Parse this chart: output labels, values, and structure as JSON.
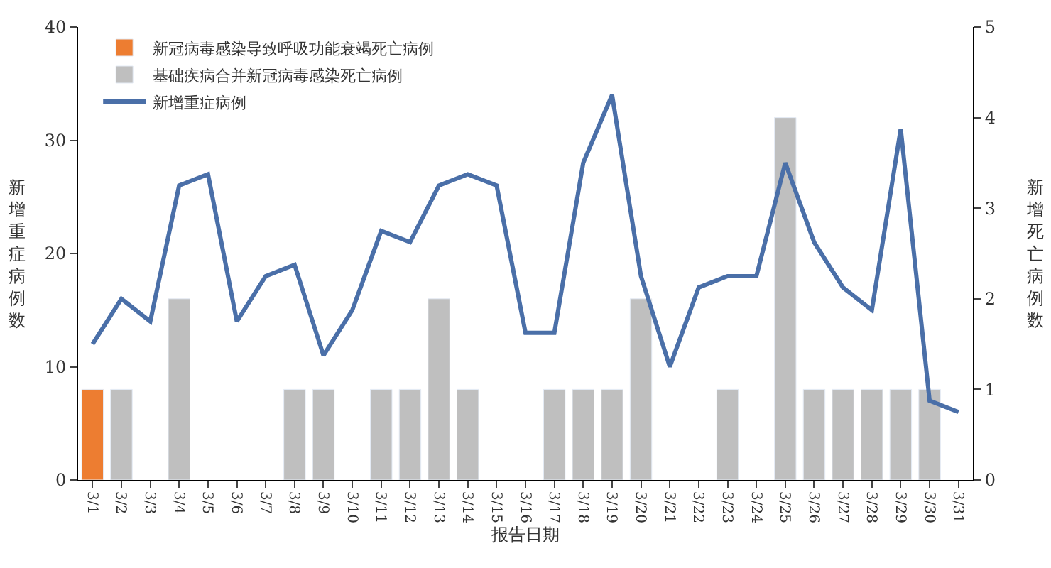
{
  "chart_data": {
    "type": "bar",
    "categories": [
      "3/1",
      "3/2",
      "3/3",
      "3/4",
      "3/5",
      "3/6",
      "3/7",
      "3/8",
      "3/9",
      "3/10",
      "3/11",
      "3/12",
      "3/13",
      "3/14",
      "3/15",
      "3/16",
      "3/17",
      "3/18",
      "3/19",
      "3/20",
      "3/21",
      "3/22",
      "3/23",
      "3/24",
      "3/25",
      "3/26",
      "3/27",
      "3/28",
      "3/29",
      "3/30",
      "3/31"
    ],
    "series": [
      {
        "name": "新冠病毒感染导致呼吸功能衰竭死亡病例",
        "axis": "y2",
        "color": "#ed7d31",
        "values": [
          1,
          null,
          null,
          null,
          null,
          null,
          null,
          null,
          null,
          null,
          null,
          null,
          null,
          null,
          null,
          null,
          null,
          null,
          null,
          null,
          null,
          null,
          null,
          null,
          null,
          null,
          null,
          null,
          null,
          null,
          null
        ]
      },
      {
        "name": "基础疾病合并新冠病毒感染死亡病例",
        "axis": "y2",
        "color": "#bfbfbf",
        "values": [
          null,
          1,
          null,
          2,
          null,
          null,
          null,
          1,
          1,
          null,
          1,
          1,
          2,
          1,
          null,
          null,
          1,
          1,
          1,
          2,
          null,
          null,
          1,
          null,
          4,
          1,
          1,
          1,
          1,
          1,
          null
        ]
      },
      {
        "name": "新增重症病例",
        "type": "line",
        "color": "#4a6fa8",
        "values": [
          12,
          16,
          14,
          26,
          27,
          14,
          18,
          19,
          11,
          15,
          22,
          21,
          26,
          27,
          26,
          13,
          13,
          28,
          34,
          18,
          10,
          17,
          18,
          18,
          28,
          21,
          17,
          15,
          31,
          7,
          6
        ]
      }
    ],
    "xlabel": "报告日期",
    "ylabel": "新增重症病例数",
    "y2label": "新增死亡病例数",
    "ylim": [
      0,
      40
    ],
    "yticks": [
      0,
      10,
      20,
      30,
      40
    ],
    "y2lim": [
      0,
      5
    ],
    "y2ticks": [
      0,
      1,
      2,
      3,
      4,
      5
    ],
    "legend": "top left",
    "marker": "none",
    "line_style": "solid"
  }
}
